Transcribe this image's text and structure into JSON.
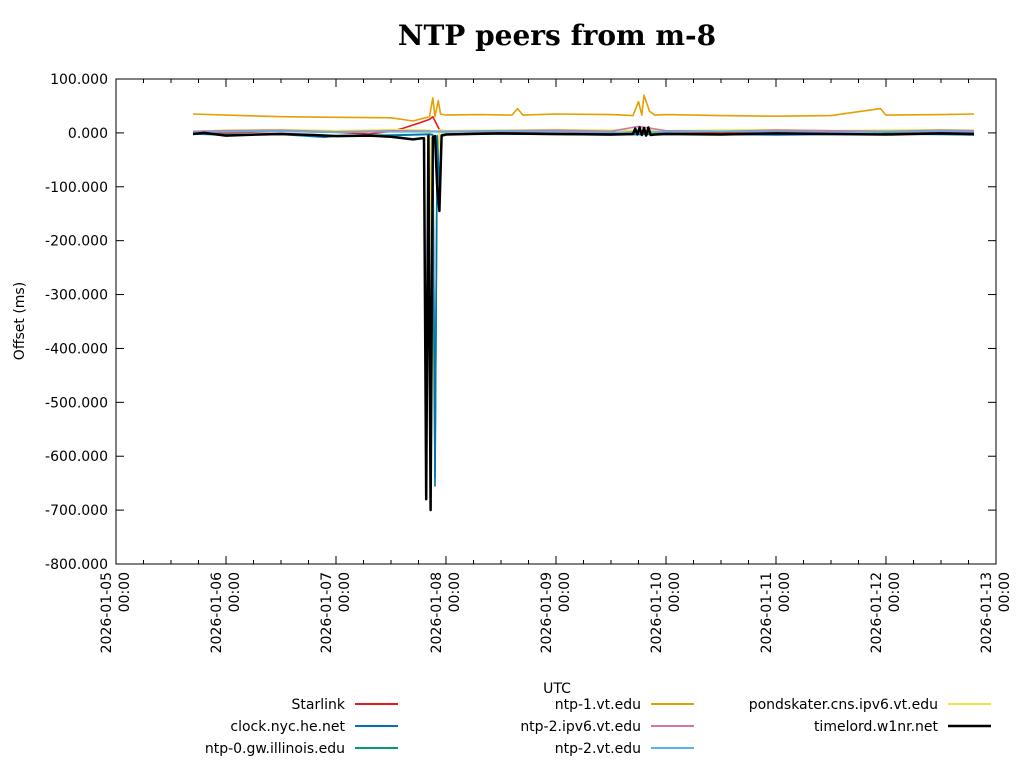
{
  "chart_data": {
    "type": "line",
    "title": "NTP peers from m-8",
    "xlabel": "UTC",
    "ylabel": "Offset (ms)",
    "ylim": [
      -800,
      100
    ],
    "xlim_days": [
      0,
      8
    ],
    "y_ticks": [
      {
        "value": 100,
        "label": "100.000"
      },
      {
        "value": 0,
        "label": "0.000"
      },
      {
        "value": -100,
        "label": "-100.000"
      },
      {
        "value": -200,
        "label": "-200.000"
      },
      {
        "value": -300,
        "label": "-300.000"
      },
      {
        "value": -400,
        "label": "-400.000"
      },
      {
        "value": -500,
        "label": "-500.000"
      },
      {
        "value": -600,
        "label": "-600.000"
      },
      {
        "value": -700,
        "label": "-700.000"
      },
      {
        "value": -800,
        "label": "-800.000"
      }
    ],
    "x_ticks": [
      {
        "day": 0,
        "date": "2026-01-05",
        "time": "00:00"
      },
      {
        "day": 1,
        "date": "2026-01-06",
        "time": "00:00"
      },
      {
        "day": 2,
        "date": "2026-01-07",
        "time": "00:00"
      },
      {
        "day": 3,
        "date": "2026-01-08",
        "time": "00:00"
      },
      {
        "day": 4,
        "date": "2026-01-09",
        "time": "00:00"
      },
      {
        "day": 5,
        "date": "2026-01-10",
        "time": "00:00"
      },
      {
        "day": 6,
        "date": "2026-01-11",
        "time": "00:00"
      },
      {
        "day": 7,
        "date": "2026-01-12",
        "time": "00:00"
      },
      {
        "day": 8,
        "date": "2026-01-13",
        "time": "00:00"
      }
    ],
    "series": [
      {
        "name": "Starlink",
        "color": "#e41a1c",
        "x": [
          0.7,
          1.0,
          1.5,
          2.0,
          2.3,
          2.5,
          2.6,
          2.75,
          2.85,
          2.88,
          2.95,
          3.3,
          3.5,
          4.0,
          4.5,
          4.8,
          5.0,
          5.5,
          6.0,
          6.5,
          6.9,
          7.0,
          7.5,
          7.8
        ],
        "y": [
          2,
          0,
          3,
          1,
          -2,
          3,
          8,
          18,
          25,
          30,
          2,
          2,
          0,
          2,
          0,
          3,
          1,
          0,
          2,
          1,
          5,
          1,
          2,
          1
        ]
      },
      {
        "name": "ntp-1.vt.edu",
        "color": "#e69f00",
        "x": [
          0.7,
          1.0,
          1.5,
          2.0,
          2.5,
          2.7,
          2.85,
          2.88,
          2.9,
          2.93,
          2.95,
          3.0,
          3.3,
          3.6,
          3.65,
          3.7,
          4.0,
          4.5,
          4.7,
          4.75,
          4.78,
          4.8,
          4.85,
          4.9,
          5.0,
          5.5,
          6.0,
          6.5,
          6.95,
          7.0,
          7.5,
          7.8
        ],
        "y": [
          35,
          33,
          30,
          29,
          28,
          22,
          30,
          65,
          30,
          60,
          35,
          33,
          34,
          33,
          45,
          33,
          35,
          34,
          32,
          58,
          33,
          70,
          40,
          33,
          34,
          32,
          31,
          32,
          45,
          33,
          34,
          35
        ]
      },
      {
        "name": "pondskater.cns.ipv6.vt.edu",
        "color": "#f0e442",
        "x": [
          0.7,
          1.0,
          1.5,
          2.0,
          2.5,
          2.85,
          2.9,
          2.92,
          2.94,
          2.96,
          3.0,
          3.5,
          4.0,
          4.5,
          5.0,
          5.5,
          6.0,
          6.5,
          7.0,
          7.5,
          7.8
        ],
        "y": [
          3,
          5,
          6,
          4,
          6,
          5,
          -600,
          -100,
          6,
          5,
          4,
          5,
          6,
          5,
          4,
          5,
          6,
          4,
          5,
          6,
          5
        ]
      },
      {
        "name": "ntp-2.ipv6.vt.edu",
        "color": "#cc79a7",
        "x": [
          0.7,
          1.0,
          1.5,
          2.0,
          2.5,
          3.0,
          3.5,
          4.0,
          4.5,
          4.75,
          5.0,
          5.5,
          6.0,
          6.5,
          7.0,
          7.5,
          7.8
        ],
        "y": [
          3,
          4,
          5,
          2,
          4,
          3,
          4,
          5,
          3,
          12,
          4,
          3,
          5,
          4,
          3,
          5,
          4
        ]
      },
      {
        "name": "ntp-2.vt.edu",
        "color": "#56b4e9",
        "x": [
          0.7,
          1.0,
          1.5,
          2.0,
          2.5,
          3.0,
          3.5,
          4.0,
          4.5,
          5.0,
          5.5,
          6.0,
          6.5,
          7.0,
          7.5,
          7.8
        ],
        "y": [
          1,
          2,
          3,
          1,
          2,
          2,
          3,
          2,
          1,
          2,
          3,
          2,
          1,
          2,
          3,
          2
        ]
      },
      {
        "name": "ntp-0.gw.illinois.edu",
        "color": "#009e73",
        "x": [
          0.7,
          1.0,
          1.5,
          2.0,
          2.5,
          2.85,
          2.88,
          2.9,
          2.92,
          2.94,
          2.96,
          3.0,
          3.5,
          4.0,
          4.5,
          5.0,
          5.5,
          6.0,
          6.5,
          7.0,
          7.5,
          7.8
        ],
        "y": [
          -1,
          -3,
          -2,
          -5,
          -4,
          -2,
          -3,
          -640,
          -5,
          -100,
          -3,
          -2,
          -1,
          -2,
          -3,
          -1,
          -2,
          -3,
          -2,
          -1,
          -2,
          -3
        ]
      },
      {
        "name": "clock.nyc.he.net",
        "color": "#0072b2",
        "x": [
          0.7,
          1.0,
          1.5,
          1.9,
          2.0,
          2.5,
          2.85,
          2.88,
          2.9,
          2.92,
          2.94,
          2.96,
          3.0,
          3.5,
          4.0,
          4.5,
          5.0,
          5.5,
          6.0,
          6.5,
          7.0,
          7.5,
          7.8
        ],
        "y": [
          -2,
          -4,
          -3,
          -8,
          -6,
          -5,
          -3,
          -4,
          -655,
          -6,
          -110,
          -4,
          -3,
          -2,
          -3,
          -4,
          -2,
          -3,
          -4,
          -3,
          -2,
          -3,
          -4
        ]
      },
      {
        "name": "timelord.w1nr.net",
        "color": "#000000",
        "x": [
          0.7,
          0.8,
          1.0,
          1.3,
          1.5,
          1.8,
          2.0,
          2.3,
          2.5,
          2.7,
          2.78,
          2.8,
          2.82,
          2.84,
          2.86,
          2.88,
          2.9,
          2.92,
          2.94,
          2.96,
          3.0,
          3.2,
          3.5,
          4.0,
          4.5,
          4.7,
          4.72,
          4.74,
          4.76,
          4.78,
          4.8,
          4.82,
          4.84,
          4.86,
          4.9,
          5.0,
          5.5,
          6.0,
          6.5,
          7.0,
          7.5,
          7.8
        ],
        "y": [
          -2,
          0,
          -5,
          -3,
          -2,
          -4,
          -6,
          -5,
          -7,
          -12,
          -10,
          -10,
          -680,
          -5,
          -700,
          -8,
          -6,
          -100,
          -145,
          -5,
          -3,
          -2,
          -1,
          -2,
          -3,
          -2,
          8,
          -3,
          10,
          -4,
          9,
          -5,
          10,
          -4,
          -3,
          -2,
          -3,
          -1,
          -2,
          -3,
          -1,
          -2
        ]
      }
    ],
    "legend_columns": [
      [
        "Starlink",
        "clock.nyc.he.net",
        "ntp-0.gw.illinois.edu"
      ],
      [
        "ntp-1.vt.edu",
        "ntp-2.ipv6.vt.edu",
        "ntp-2.vt.edu"
      ],
      [
        "pondskater.cns.ipv6.vt.edu",
        "timelord.w1nr.net"
      ]
    ],
    "legend_position": "bottom"
  }
}
